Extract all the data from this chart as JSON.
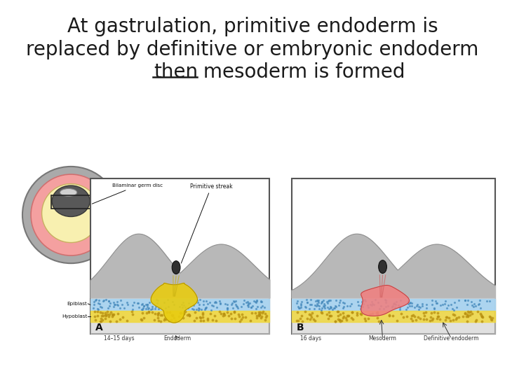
{
  "title_line1": "At gastrulation, primitive endoderm is",
  "title_line2": "replaced by definitive or embryonic endoderm",
  "title_line3_underline": "then",
  "title_line3_normal": " mesoderm is formed",
  "background_color": "#ffffff",
  "title_fontsize": 20,
  "title_color": "#1a1a1a",
  "fig_width": 7.2,
  "fig_height": 5.4,
  "dpi": 100
}
